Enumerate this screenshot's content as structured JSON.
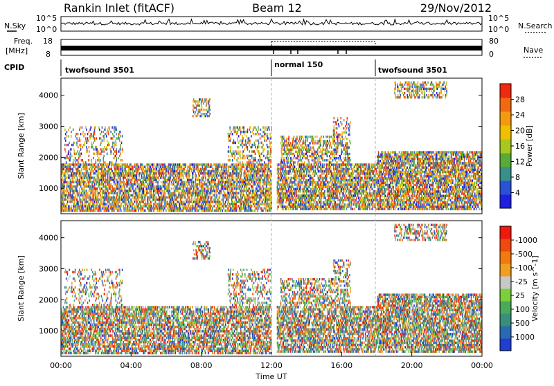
{
  "header": {
    "station": "Rankin Inlet (fitACF)",
    "beam": "Beam 12",
    "date": "29/Nov/2012"
  },
  "chart_data": [
    {
      "type": "line",
      "panel": "noise",
      "left_label": "N.Sky",
      "right_label": "N.Search",
      "left_ticks": [
        "10^5",
        "10^0"
      ],
      "right_ticks": [
        "10^5",
        "10^0"
      ]
    },
    {
      "type": "line",
      "panel": "frequency",
      "left_label_line1": "Freq.",
      "left_label_line2": "[MHz]",
      "right_label": "Nave",
      "left_ticks": [
        "18",
        "8"
      ],
      "right_ticks": [
        "80",
        "0"
      ]
    },
    {
      "type": "table",
      "panel": "cpid",
      "label": "CPID",
      "segments": [
        {
          "name": "twofsound 3501",
          "start_hour": 0,
          "end_hour": 12
        },
        {
          "name": "normal 150",
          "start_hour": 12,
          "end_hour": 18
        },
        {
          "name": "twofsound 3501",
          "start_hour": 18,
          "end_hour": 24
        }
      ]
    },
    {
      "type": "heatmap",
      "panel": "power",
      "ylabel": "Slant Range [km]",
      "ylim": [
        180,
        4550
      ],
      "yticks": [
        "1000",
        "2000",
        "3000",
        "4000"
      ],
      "colorbar": {
        "label": "Power [dB]",
        "ticks": [
          "4",
          "8",
          "12",
          "16",
          "20",
          "24",
          "28"
        ],
        "colors": [
          "#1f1fe0",
          "#2a52d4",
          "#3a8f8a",
          "#5aaa3a",
          "#a8c820",
          "#f0c000",
          "#f59a10",
          "#f26a10",
          "#ee2a10"
        ]
      }
    },
    {
      "type": "heatmap",
      "panel": "velocity",
      "ylabel": "Slant Range [km]",
      "ylim": [
        180,
        4550
      ],
      "yticks": [
        "1000",
        "2000",
        "3000",
        "4000"
      ],
      "xlabel": "Time UT",
      "xticks": [
        "00:00",
        "04:00",
        "08:00",
        "12:00",
        "16:00",
        "20:00",
        "00:00"
      ],
      "colorbar": {
        "label": "Velocity [m s^-1]",
        "ticks": [
          "1000",
          "500",
          "100",
          "25",
          "-25",
          "-100",
          "-500",
          "-1000"
        ],
        "colors": [
          "#1f3fd0",
          "#2a6ab0",
          "#3a8f7a",
          "#4ca85a",
          "#7ad03a",
          "#c8c8c8",
          "#f0a020",
          "#f07a10",
          "#ee4a10",
          "#ee1a10"
        ]
      }
    }
  ]
}
